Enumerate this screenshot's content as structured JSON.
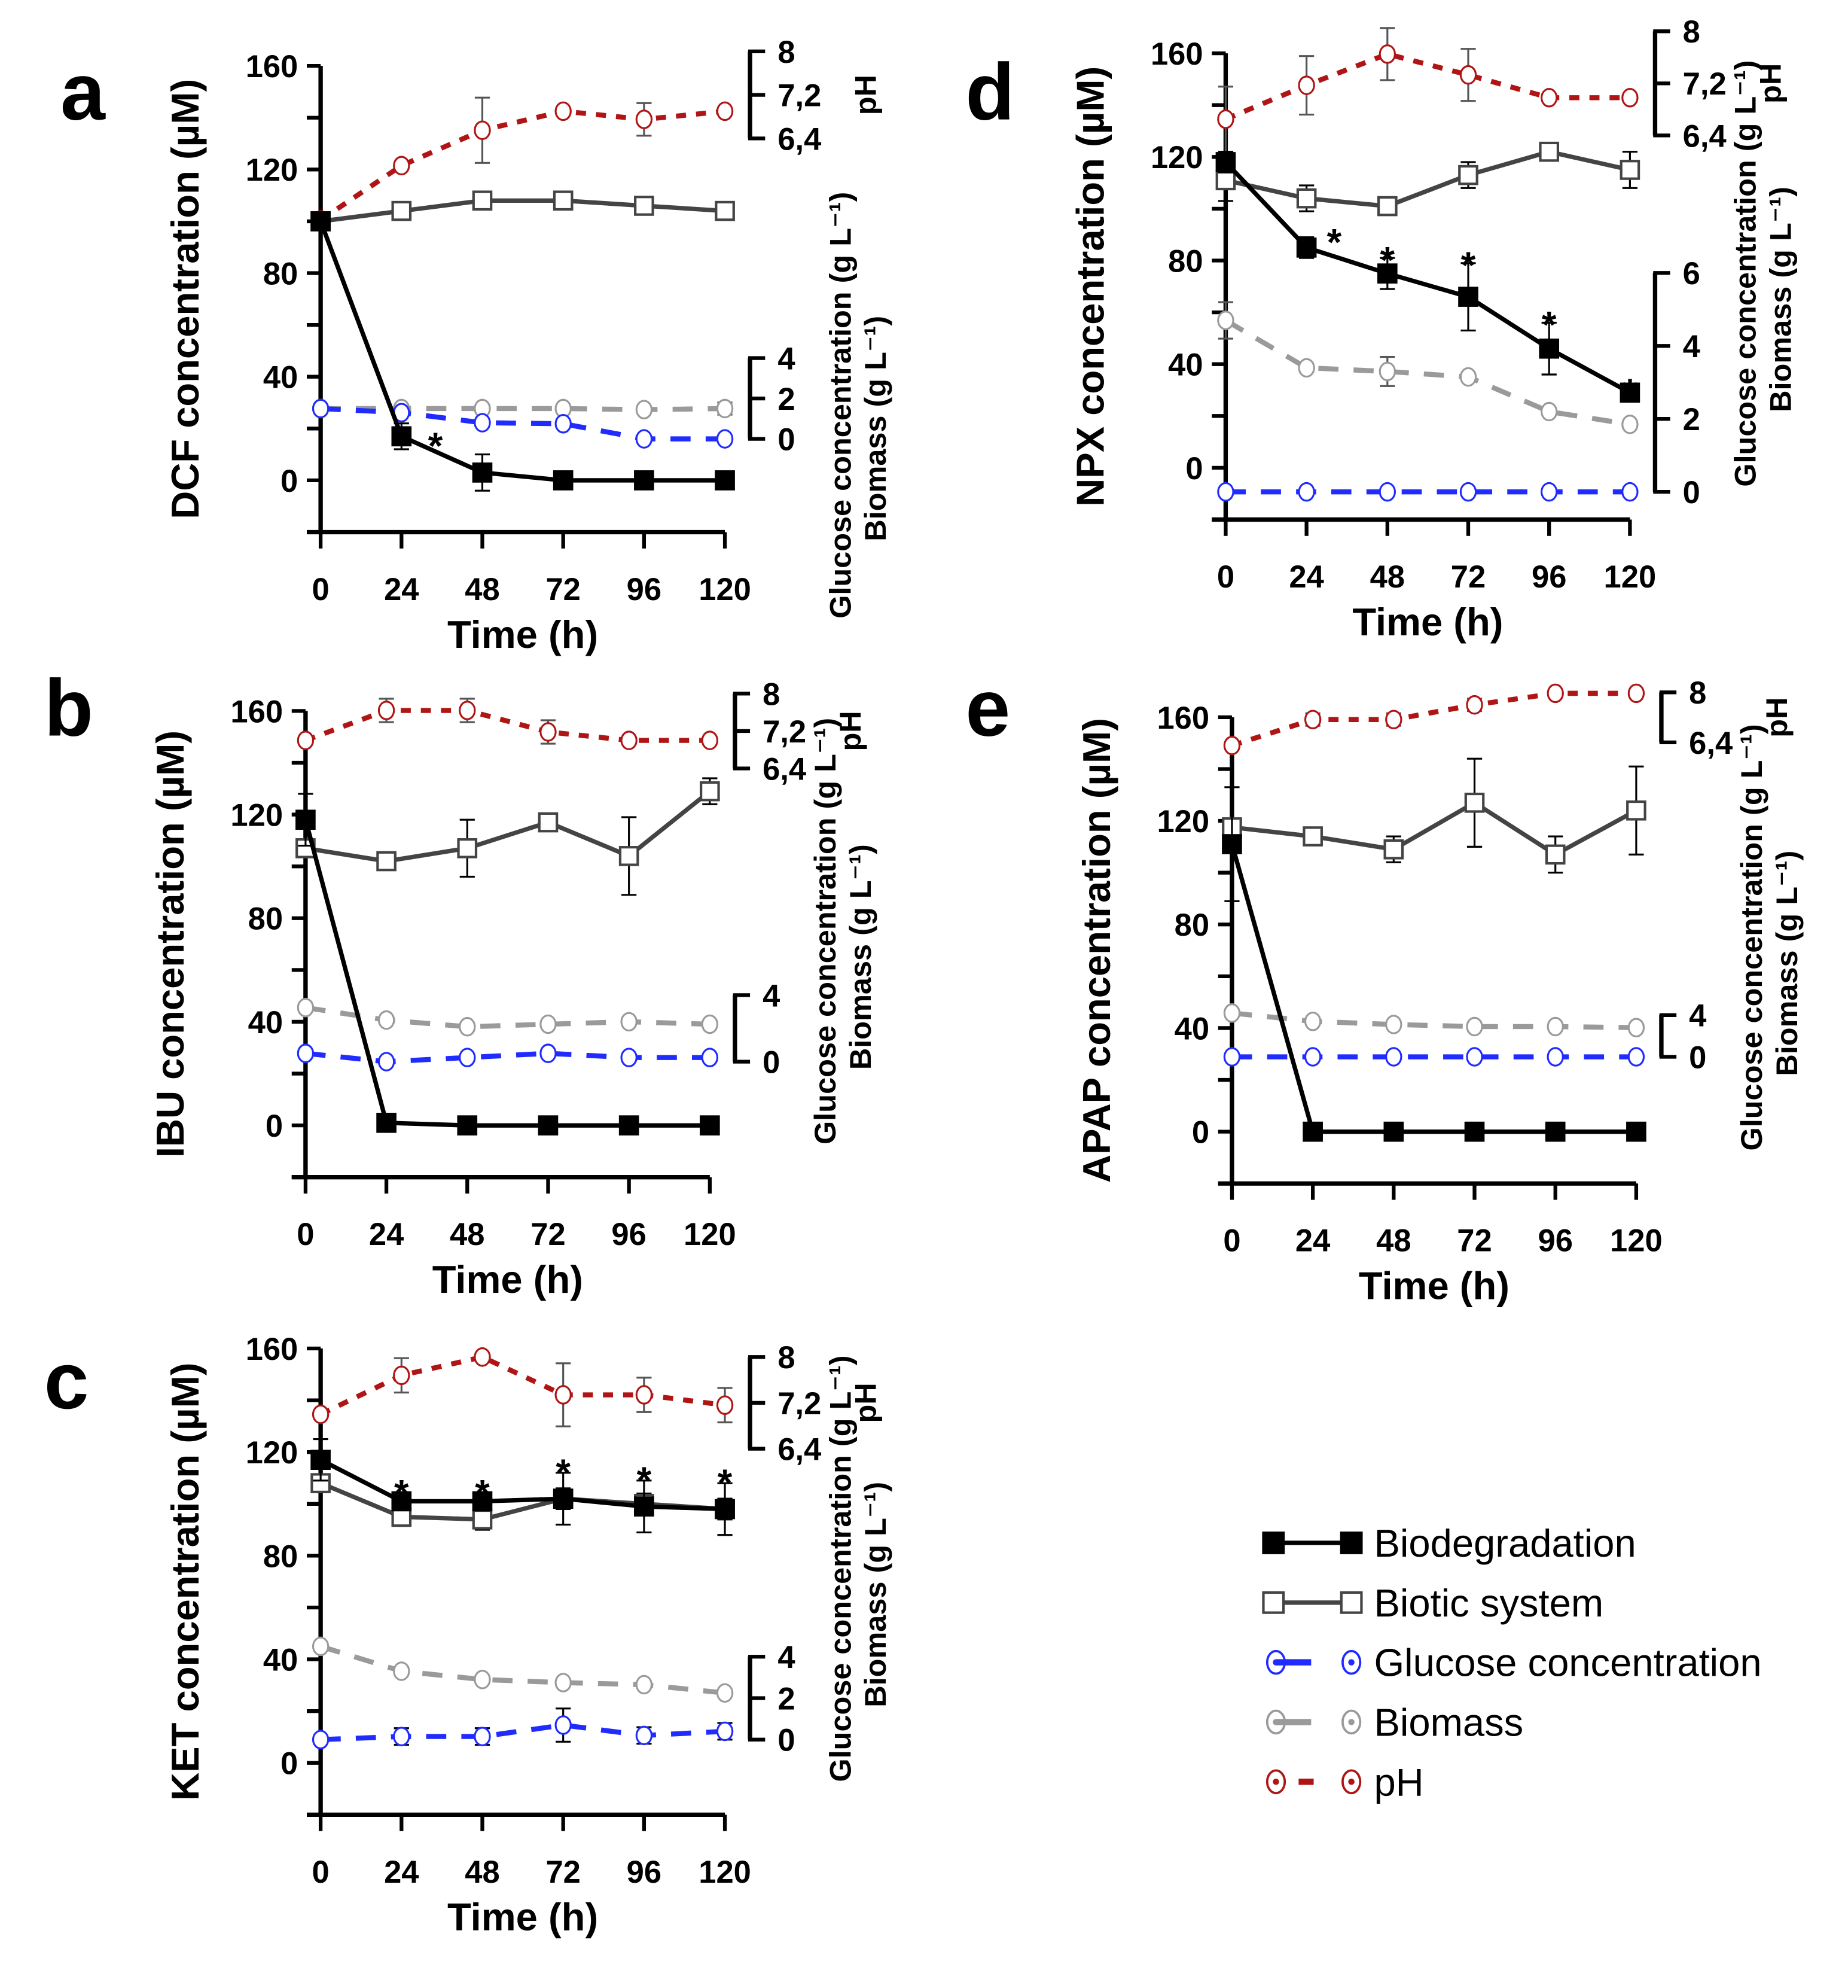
{
  "chart_data": {
    "type": "line",
    "x_label": "Time (h)",
    "x_ticks": [
      0,
      24,
      48,
      72,
      96,
      120
    ],
    "y_ticks_labeled": [
      0,
      40,
      80,
      120,
      160
    ],
    "ylim": [
      -20,
      160
    ],
    "xlim": [
      0,
      120
    ],
    "ph_label": "pH",
    "glucose_label": "Glucose concentration (g L⁻¹)",
    "biomass_label": "Biomass (g L⁻¹)",
    "legend": {
      "placement": "bottom-right",
      "entries": [
        {
          "key": "biodegradation",
          "label": "Biodegradation"
        },
        {
          "key": "biotic",
          "label": "Biotic system"
        },
        {
          "key": "glucose",
          "label": "Glucose concentration"
        },
        {
          "key": "biomass",
          "label": "Biomass"
        },
        {
          "key": "ph",
          "label": "pH"
        }
      ]
    },
    "colors": {
      "biodegradation": "#000000",
      "biotic": "#444444",
      "glucose": "#1f2bff",
      "biomass": "#9a9a9a",
      "ph": "#b01515"
    },
    "panels": [
      {
        "id": "a",
        "letter": "a",
        "ylabel": "DCF concentration (µM)",
        "ph_ticks": [
          "8",
          "7,2",
          "6,4"
        ],
        "ph_tick_values": [
          8,
          7.2,
          6.4
        ],
        "gb_ticks": [
          "4",
          "2",
          "0"
        ],
        "gb_tick_values": [
          4,
          2,
          0
        ],
        "significant": [
          24
        ],
        "series": {
          "biodegradation": {
            "values": [
              100,
              17,
              3,
              0,
              0,
              0
            ],
            "err": [
              2,
              5,
              7,
              0,
              0,
              0
            ]
          },
          "biotic": {
            "values": [
              100,
              104,
              108,
              108,
              106,
              104
            ],
            "err": [
              1,
              1,
              2,
              1,
              1,
              1
            ]
          },
          "glucose": {
            "values": [
              1.5,
              1.3,
              0.8,
              0.75,
              0.0,
              0.0
            ],
            "err": [
              0,
              0,
              0,
              0,
              0,
              0
            ]
          },
          "biomass": {
            "values": [
              1.5,
              1.5,
              1.5,
              1.5,
              1.45,
              1.5
            ],
            "err": [
              0,
              0,
              0,
              0,
              0.1,
              0.3
            ]
          },
          "ph": {
            "values": [
              4.9,
              5.9,
              6.55,
              6.9,
              6.75,
              6.9
            ],
            "err": [
              0,
              0,
              0.6,
              0,
              0.3,
              0
            ]
          }
        }
      },
      {
        "id": "d",
        "letter": "d",
        "ylabel": "NPX concentration (µM)",
        "ph_ticks": [
          "8",
          "7,2",
          "6,4"
        ],
        "ph_tick_values": [
          8,
          7.2,
          6.4
        ],
        "gb_ticks": [
          "6",
          "4",
          "2",
          "0"
        ],
        "gb_tick_values": [
          6,
          4,
          2,
          0
        ],
        "significant": [
          24,
          48,
          72,
          96,
          120
        ],
        "series": {
          "biodegradation": {
            "values": [
              118,
              85,
              75,
              66,
              46,
              29
            ],
            "err": [
              4,
              4,
              6,
              13,
              10,
              1
            ]
          },
          "biotic": {
            "values": [
              111,
              104,
              101,
              113,
              122,
              115
            ],
            "err": [
              8,
              5,
              2,
              5,
              2,
              7
            ]
          },
          "glucose": {
            "values": [
              0,
              0,
              0,
              0,
              0,
              0
            ],
            "err": [
              0,
              0,
              0,
              0,
              0,
              0
            ]
          },
          "biomass": {
            "values": [
              4.7,
              3.4,
              3.3,
              3.15,
              2.2,
              1.85
            ],
            "err": [
              0.5,
              0.1,
              0.4,
              0.1,
              0.1,
              0.1
            ]
          },
          "ph": {
            "values": [
              6.65,
              7.17,
              7.65,
              7.33,
              6.98,
              6.98
            ],
            "err": [
              0.5,
              0.45,
              0.4,
              0.4,
              0,
              0
            ]
          }
        }
      },
      {
        "id": "b",
        "letter": "b",
        "ylabel": "IBU concentration (µM)",
        "ph_ticks": [
          "8",
          "7,2",
          "6,4"
        ],
        "ph_tick_values": [
          8,
          7.2,
          6.4
        ],
        "gb_ticks": [
          "4",
          "0"
        ],
        "gb_tick_values": [
          4,
          0
        ],
        "significant": [],
        "series": {
          "biodegradation": {
            "values": [
              118,
              1,
              0,
              0,
              0,
              0
            ],
            "err": [
              10,
              0,
              0,
              0,
              0,
              0
            ]
          },
          "biotic": {
            "values": [
              107,
              102,
              107,
              117,
              104,
              129
            ],
            "err": [
              2,
              2,
              11,
              2,
              15,
              5
            ]
          },
          "glucose": {
            "values": [
              0.5,
              0,
              0.25,
              0.5,
              0.25,
              0.25
            ],
            "err": [
              0,
              0,
              0.2,
              0.2,
              0.2,
              0.2
            ]
          },
          "biomass": {
            "values": [
              3.25,
              2.5,
              2.1,
              2.25,
              2.4,
              2.25
            ],
            "err": [
              0,
              0.1,
              0.1,
              0.2,
              0.1,
              0.2
            ]
          },
          "ph": {
            "values": [
              7.0,
              7.64,
              7.64,
              7.18,
              7.0,
              7.0
            ],
            "err": [
              0,
              0.25,
              0.25,
              0.25,
              0,
              0
            ]
          }
        }
      },
      {
        "id": "e",
        "letter": "e",
        "ylabel": "APAP concentration (µM)",
        "ph_ticks": [
          "8",
          "6,4"
        ],
        "ph_tick_values": [
          8,
          6.4
        ],
        "gb_ticks": [
          "4",
          "0"
        ],
        "gb_tick_values": [
          4,
          0
        ],
        "significant": [],
        "series": {
          "biodegradation": {
            "values": [
              111,
              0,
              0,
              0,
              0,
              0
            ],
            "err": [
              22,
              0,
              0,
              0,
              0,
              0
            ]
          },
          "biotic": {
            "values": [
              117.5,
              114,
              109,
              127,
              107,
              124
            ],
            "err": [
              2,
              2,
              5,
              17,
              7,
              17
            ]
          },
          "glucose": {
            "values": [
              0,
              0,
              0,
              0,
              0,
              0
            ],
            "err": [
              0,
              0,
              0,
              0,
              0,
              0
            ]
          },
          "biomass": {
            "values": [
              4.2,
              3.4,
              3.1,
              2.9,
              2.9,
              2.8
            ],
            "err": [
              0,
              0.2,
              0.2,
              0,
              0,
              0.2
            ]
          },
          "ph": {
            "values": [
              6.3,
              7.13,
              7.13,
              7.6,
              7.97,
              7.97
            ],
            "err": [
              0,
              0.2,
              0.2,
              0.2,
              0,
              0
            ]
          }
        }
      },
      {
        "id": "c",
        "letter": "c",
        "ylabel": "KET concentration (µM)",
        "ph_ticks": [
          "8",
          "7,2",
          "6,4"
        ],
        "ph_tick_values": [
          8,
          7.2,
          6.4
        ],
        "gb_ticks": [
          "4",
          "2",
          "0"
        ],
        "gb_tick_values": [
          4,
          2,
          0
        ],
        "significant": [
          24,
          48,
          72,
          96,
          120
        ],
        "series": {
          "biodegradation": {
            "values": [
              117,
              101,
              101,
              102,
              99,
              98
            ],
            "err": [
              8,
              3,
              3,
              10,
              10,
              10
            ]
          },
          "biotic": {
            "values": [
              108,
              95,
              94,
              102,
              100,
              98
            ],
            "err": [
              2,
              2,
              4,
              4,
              4,
              4
            ]
          },
          "glucose": {
            "values": [
              0,
              0.15,
              0.15,
              0.7,
              0.2,
              0.4
            ],
            "err": [
              0,
              0.4,
              0.4,
              0.8,
              0.4,
              0.4
            ]
          },
          "biomass": {
            "values": [
              4.5,
              3.3,
              2.9,
              2.75,
              2.65,
              2.25
            ],
            "err": [
              0,
              0.2,
              0.1,
              0.1,
              0.1,
              0.1
            ]
          },
          "ph": {
            "values": [
              7.0,
              7.68,
              8.0,
              7.34,
              7.34,
              7.16
            ],
            "err": [
              0,
              0.3,
              0,
              0.55,
              0.3,
              0.3
            ]
          }
        }
      }
    ]
  }
}
